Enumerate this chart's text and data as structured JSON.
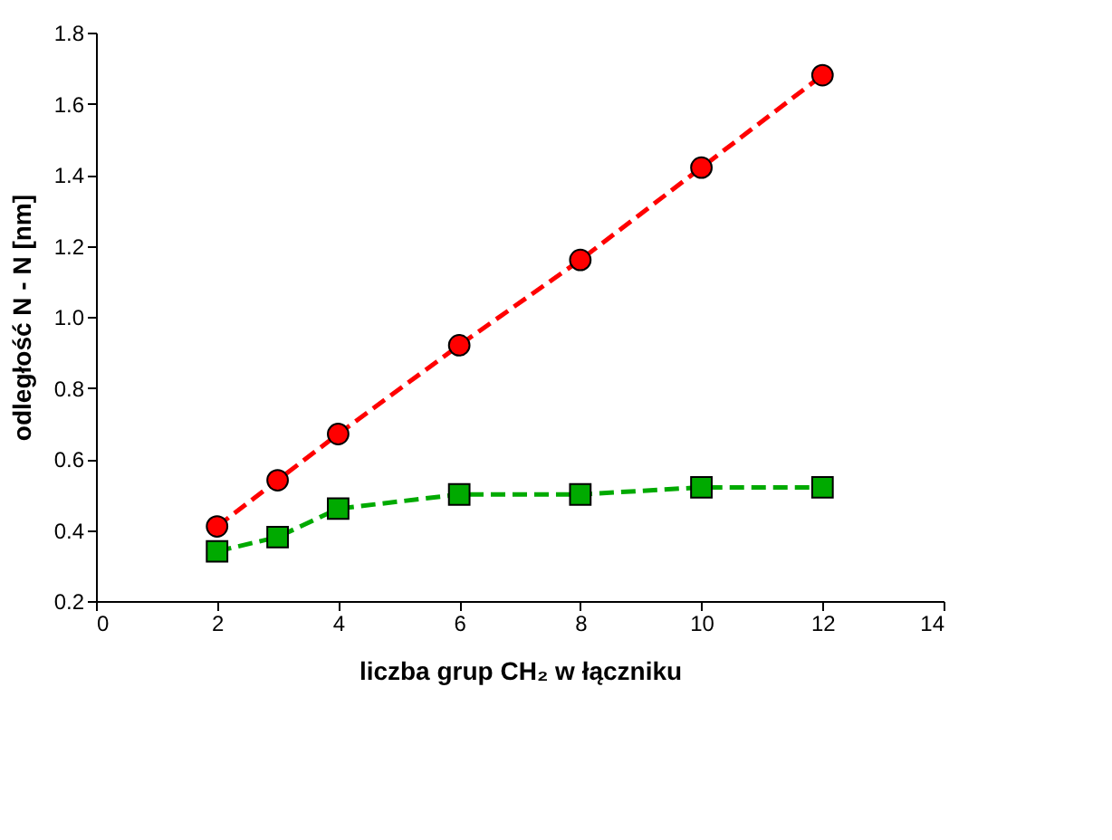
{
  "chart_data": {
    "type": "line",
    "xlabel": "liczba grup CH₂ w łączniku",
    "ylabel": "odległość N - N  [nm]",
    "x": [
      2,
      3,
      4,
      6,
      8,
      10,
      12
    ],
    "series": [
      {
        "color": "#ff0000",
        "marker": "circle",
        "line_style": "dashed",
        "values": [
          0.41,
          0.54,
          0.67,
          0.92,
          1.16,
          1.42,
          1.68
        ]
      },
      {
        "color": "#00aa00",
        "marker": "square",
        "line_style": "dashed",
        "values": [
          0.34,
          0.38,
          0.46,
          0.5,
          0.5,
          0.52,
          0.52
        ]
      }
    ],
    "xlim": [
      0,
      14
    ],
    "xticks": [
      0,
      2,
      4,
      6,
      8,
      10,
      12,
      14
    ],
    "ylim": [
      0.2,
      1.8
    ],
    "yticks": [
      0.2,
      0.4,
      0.6,
      0.8,
      {
        "value": 1,
        "label": "1.0"
      },
      1.2,
      1.4,
      1.6,
      1.8
    ],
    "grid": false
  }
}
